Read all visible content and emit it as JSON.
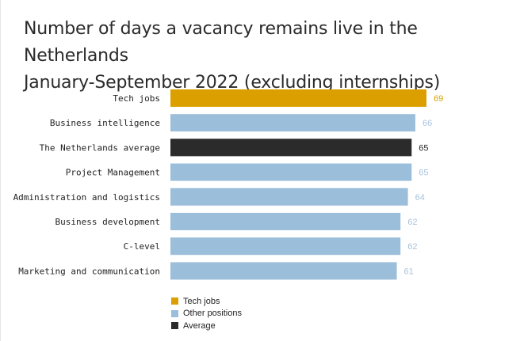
{
  "title_line1": "Number of days a vacancy remains live in the Netherlands",
  "title_line2": "January-September 2022 (excluding internships)",
  "colors": {
    "tech": "#dba000",
    "other": "#9bbedb",
    "average": "#2b2b2b",
    "other_label": "#a9c4dd",
    "tech_label": "#d9a400",
    "avg_label": "#2b2b2b"
  },
  "chart_data": {
    "type": "bar",
    "orientation": "horizontal",
    "categories": [
      "Tech jobs",
      "Business intelligence",
      "The Netherlands average",
      "Project Management",
      "Administration and logistics",
      "Business development",
      "C-level",
      "Marketing and communication"
    ],
    "values": [
      69,
      66,
      65,
      65,
      64,
      62,
      62,
      61
    ],
    "groups": [
      "tech",
      "other",
      "average",
      "other",
      "other",
      "other",
      "other",
      "other"
    ],
    "xlim": [
      0,
      69
    ],
    "grid": false,
    "legend_position": "bottom",
    "legend": [
      {
        "key": "tech",
        "label": "Tech jobs"
      },
      {
        "key": "other",
        "label": "Other positions"
      },
      {
        "key": "average",
        "label": "Average"
      }
    ]
  }
}
